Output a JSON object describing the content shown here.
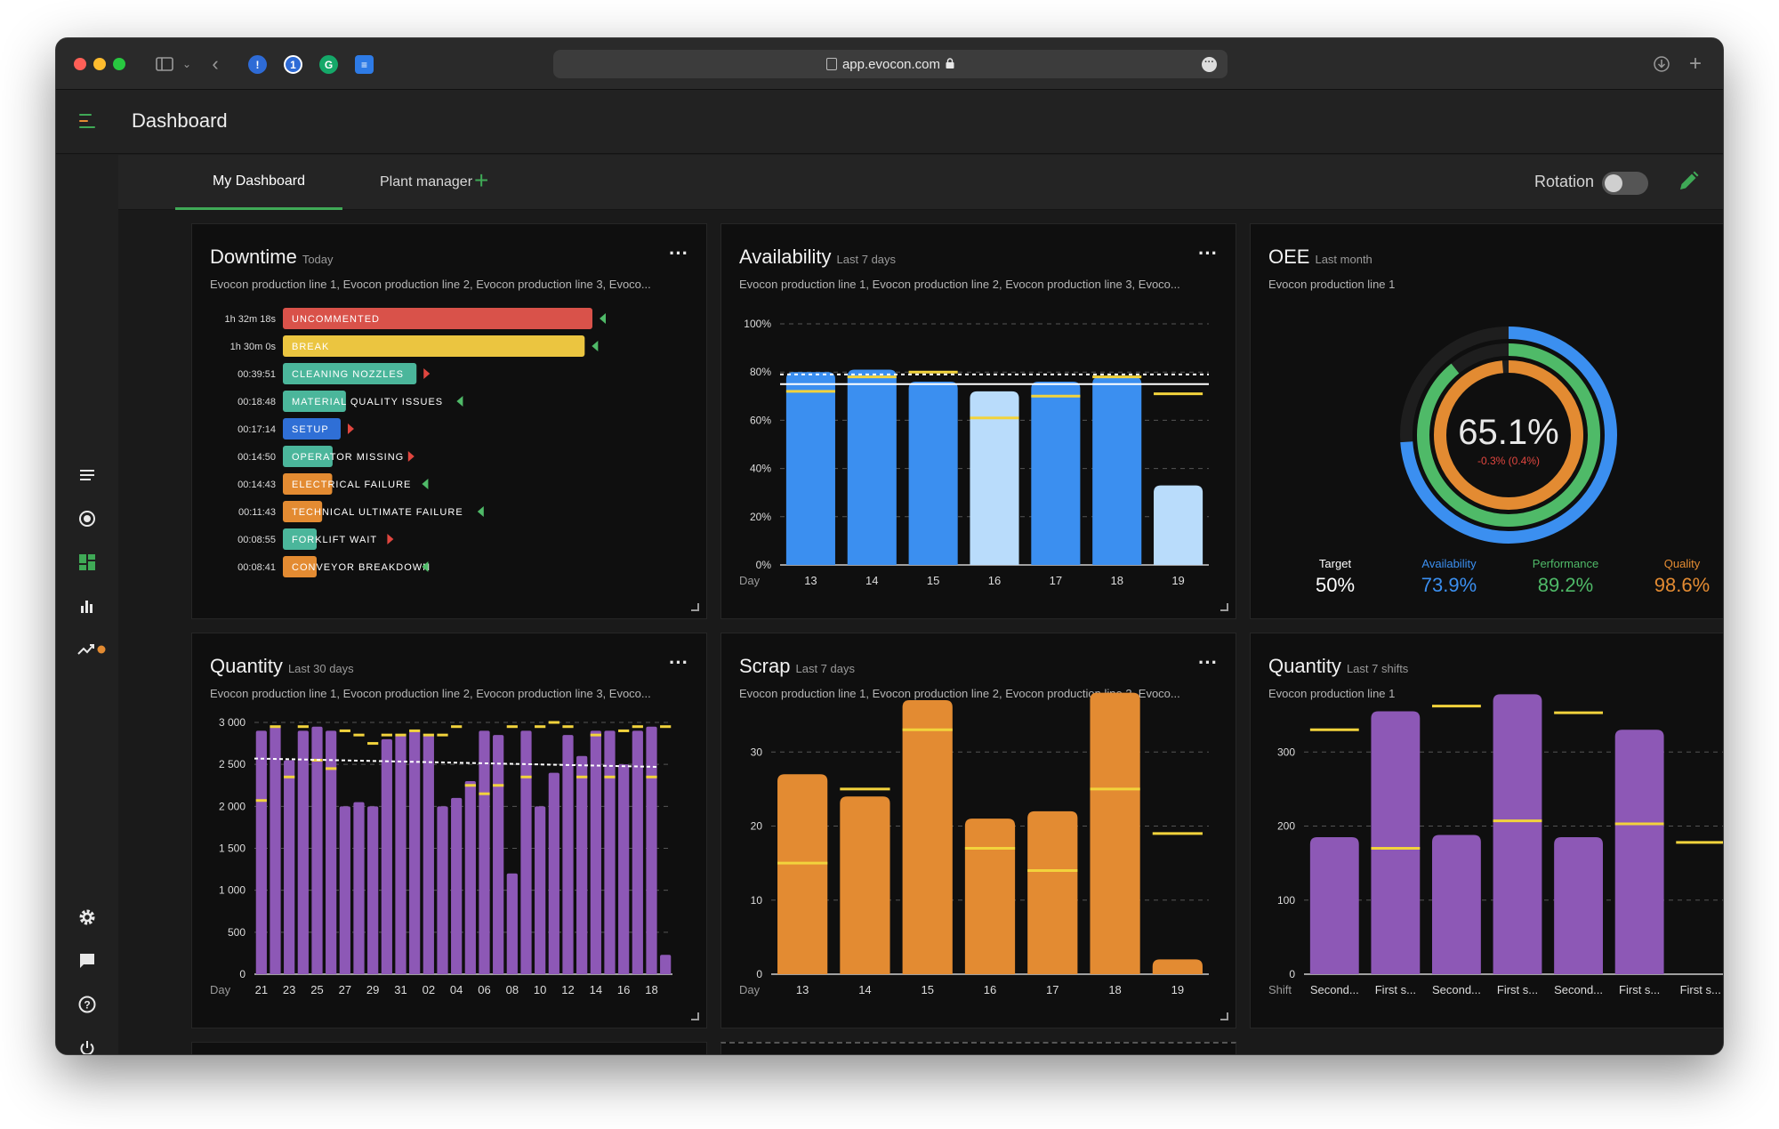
{
  "browser": {
    "url": "app.evocon.com"
  },
  "app": {
    "title": "Dashboard"
  },
  "tabs": [
    {
      "label": "My Dashboard",
      "active": true
    },
    {
      "label": "Plant manager",
      "active": false
    }
  ],
  "rotation": {
    "label": "Rotation",
    "on": false
  },
  "colors": {
    "accent": "#3fa956",
    "blue": "#3b8ff0",
    "light_blue": "#b9dcfb",
    "orange": "#e38b32",
    "purple": "#8d58b6",
    "target": "#f2d33c"
  },
  "widgets": {
    "downtime": {
      "title": "Downtime",
      "period": "Today",
      "subtitle": "Evocon production line 1, Evocon production line 2, Evocon production line 3, Evoco...",
      "chart_data": {
        "type": "bar",
        "orientation": "horizontal",
        "items": [
          {
            "time": "1h 32m 18s",
            "label": "UNCOMMENTED",
            "value_seconds": 5538,
            "color": "#d9524a",
            "trend": "down"
          },
          {
            "time": "1h 30m 0s",
            "label": "BREAK",
            "value_seconds": 5400,
            "color": "#ebc540",
            "trend": "down"
          },
          {
            "time": "00:39:51",
            "label": "CLEANING NOZZLES",
            "value_seconds": 2391,
            "color": "#4bb69b",
            "trend": "up"
          },
          {
            "time": "00:18:48",
            "label": "MATERIAL QUALITY ISSUES",
            "value_seconds": 1128,
            "color": "#4bb69b",
            "trend": "down"
          },
          {
            "time": "00:17:14",
            "label": "SETUP",
            "value_seconds": 1034,
            "color": "#2f6fd6",
            "trend": "up"
          },
          {
            "time": "00:14:50",
            "label": "OPERATOR MISSING",
            "value_seconds": 890,
            "color": "#4bb69b",
            "trend": "up"
          },
          {
            "time": "00:14:43",
            "label": "ELECTRICAL FAILURE",
            "value_seconds": 883,
            "color": "#e38b32",
            "trend": "down"
          },
          {
            "time": "00:11:43",
            "label": "TECHNICAL ULTIMATE FAILURE",
            "value_seconds": 703,
            "color": "#e38b32",
            "trend": "down"
          },
          {
            "time": "00:08:55",
            "label": "FORKLIFT WAIT",
            "value_seconds": 535,
            "color": "#4bb69b",
            "trend": "up"
          },
          {
            "time": "00:08:41",
            "label": "CONVEYOR BREAKDOWN",
            "value_seconds": 521,
            "color": "#e38b32",
            "trend": "down"
          }
        ]
      }
    },
    "availability": {
      "title": "Availability",
      "period": "Last 7 days",
      "subtitle": "Evocon production line 1, Evocon production line 2, Evocon production line 3, Evoco...",
      "chart_data": {
        "type": "bar",
        "xlabel": "Day",
        "categories": [
          "13",
          "14",
          "15",
          "16",
          "17",
          "18",
          "19"
        ],
        "values": [
          80,
          81,
          76,
          72,
          76,
          78,
          33
        ],
        "targets": [
          72,
          78,
          80,
          61,
          70,
          78,
          71
        ],
        "highlight": [
          false,
          false,
          false,
          true,
          false,
          false,
          true
        ],
        "average_line": 79,
        "target_line": 75,
        "ylim": [
          0,
          100
        ],
        "yticks": [
          "0%",
          "20%",
          "40%",
          "60%",
          "80%",
          "100%"
        ]
      }
    },
    "oee": {
      "title": "OEE",
      "period": "Last month",
      "subtitle": "Evocon production line 1",
      "value": "65.1%",
      "delta": "-0.3% (0.4%)",
      "chart_data": {
        "type": "pie",
        "rings": [
          {
            "name": "Availability",
            "value": 73.9,
            "color": "#3b8ff0"
          },
          {
            "name": "Performance",
            "value": 89.2,
            "color": "#4fba68"
          },
          {
            "name": "Quality",
            "value": 98.6,
            "color": "#e38b32"
          }
        ]
      },
      "stats": [
        {
          "label": "Target",
          "value": "50%",
          "color": "#ffffff"
        },
        {
          "label": "Availability",
          "value": "73.9%",
          "color": "#3b8ff0"
        },
        {
          "label": "Performance",
          "value": "89.2%",
          "color": "#4fba68"
        },
        {
          "label": "Quality",
          "value": "98.6%",
          "color": "#e38b32"
        }
      ]
    },
    "quantity30": {
      "title": "Quantity",
      "period": "Last 30 days",
      "subtitle": "Evocon production line 1, Evocon production line 2, Evocon production line 3, Evoco...",
      "chart_data": {
        "type": "bar",
        "xlabel": "Day",
        "ylim": [
          0,
          3000
        ],
        "yticks": [
          "0",
          "500",
          "1 000",
          "1 500",
          "2 000",
          "2 500",
          "3 000"
        ],
        "xtick_labels": [
          "21",
          "23",
          "25",
          "27",
          "29",
          "31",
          "02",
          "04",
          "06",
          "08",
          "10",
          "12",
          "14",
          "16",
          "18"
        ],
        "values": [
          2900,
          2950,
          2550,
          2900,
          2950,
          2900,
          2000,
          2050,
          2000,
          2800,
          2850,
          2900,
          2850,
          2000,
          2100,
          2300,
          2900,
          2850,
          1200,
          2900,
          2000,
          2400,
          2850,
          2600,
          2900,
          2900,
          2500,
          2900,
          2950,
          230
        ],
        "targets": [
          2070,
          2950,
          2350,
          2950,
          2550,
          2450,
          2900,
          2850,
          2750,
          2850,
          2850,
          2900,
          2850,
          2850,
          2950,
          2250,
          2150,
          2250,
          2950,
          2350,
          2950,
          3000,
          2950,
          2350,
          2850,
          2350,
          2900,
          2950,
          2350,
          2950
        ],
        "trend_start": 2570,
        "trend_end": 2470
      }
    },
    "scrap": {
      "title": "Scrap",
      "period": "Last 7 days",
      "subtitle": "Evocon production line 1, Evocon production line 2, Evocon production line 3, Evoco...",
      "chart_data": {
        "type": "bar",
        "xlabel": "Day",
        "categories": [
          "13",
          "14",
          "15",
          "16",
          "17",
          "18",
          "19"
        ],
        "values": [
          27,
          24,
          37,
          21,
          22,
          38,
          2
        ],
        "targets": [
          15,
          25,
          33,
          17,
          14,
          25,
          19
        ],
        "ylim": [
          0,
          40
        ],
        "yticks": [
          "0",
          "10",
          "20",
          "30"
        ]
      }
    },
    "quantity7": {
      "title": "Quantity",
      "period": "Last 7 shifts",
      "subtitle": "Evocon production line 1",
      "chart_data": {
        "type": "bar",
        "xlabel": "Shift",
        "categories": [
          "Second...",
          "First s...",
          "Second...",
          "First s...",
          "Second...",
          "First s...",
          "First s..."
        ],
        "values": [
          185,
          355,
          188,
          378,
          185,
          330,
          0
        ],
        "targets": [
          330,
          170,
          362,
          207,
          353,
          203,
          178
        ],
        "ylim": [
          0,
          400
        ],
        "yticks": [
          "0",
          "100",
          "200",
          "300"
        ]
      }
    }
  }
}
